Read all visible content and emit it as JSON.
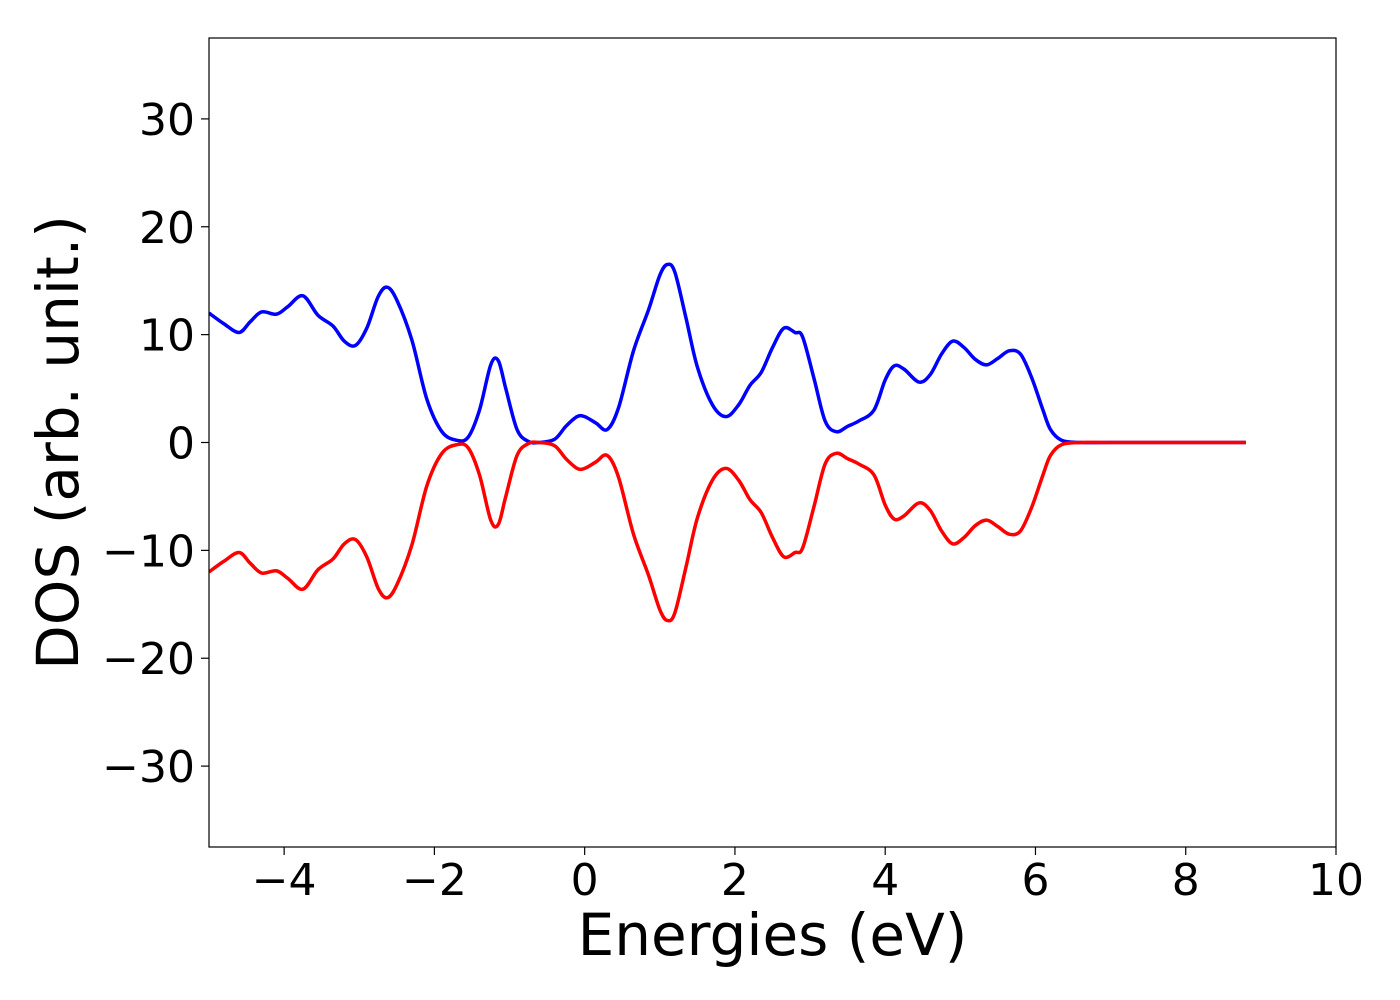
{
  "chart_data": {
    "type": "line",
    "title": "",
    "xlabel": "Energies (eV)",
    "ylabel": "DOS (arb. unit.)",
    "xlim": [
      -5,
      10
    ],
    "ylim": [
      -37.5,
      37.5
    ],
    "xticks": [
      -4,
      -2,
      0,
      2,
      4,
      6,
      8,
      10
    ],
    "yticks": [
      -30,
      -20,
      -10,
      0,
      10,
      20,
      30
    ],
    "xtick_labels": [
      "−4",
      "−2",
      "0",
      "2",
      "4",
      "6",
      "8",
      "10"
    ],
    "ytick_labels": [
      "−30",
      "−20",
      "−10",
      "0",
      "10",
      "20",
      "30"
    ],
    "grid": false,
    "legend": "none",
    "series": [
      {
        "color": "#0000ff",
        "x": [
          -5.0,
          -4.8,
          -4.6,
          -4.45,
          -4.3,
          -4.1,
          -3.95,
          -3.75,
          -3.55,
          -3.35,
          -3.2,
          -3.05,
          -2.9,
          -2.75,
          -2.63,
          -2.5,
          -2.3,
          -2.1,
          -1.9,
          -1.7,
          -1.55,
          -1.4,
          -1.25,
          -1.15,
          -1.05,
          -0.9,
          -0.75,
          -0.6,
          -0.4,
          -0.25,
          -0.1,
          0.0,
          0.15,
          0.3,
          0.45,
          0.65,
          0.85,
          1.0,
          1.1,
          1.2,
          1.35,
          1.5,
          1.7,
          1.88,
          2.05,
          2.2,
          2.35,
          2.5,
          2.65,
          2.8,
          2.9,
          3.05,
          3.2,
          3.35,
          3.5,
          3.65,
          3.85,
          4.0,
          4.12,
          4.25,
          4.45,
          4.6,
          4.75,
          4.9,
          5.05,
          5.2,
          5.35,
          5.5,
          5.65,
          5.8,
          5.95,
          6.1,
          6.2,
          6.35,
          6.6,
          7.0,
          8.0,
          8.8
        ],
        "values": [
          12.0,
          11.0,
          10.2,
          11.2,
          12.1,
          11.9,
          12.6,
          13.6,
          11.8,
          10.8,
          9.4,
          9.0,
          10.6,
          13.5,
          14.4,
          13.2,
          9.5,
          4.0,
          1.0,
          0.2,
          0.5,
          3.0,
          7.2,
          7.6,
          5.0,
          1.2,
          0.1,
          0.0,
          0.3,
          1.5,
          2.4,
          2.4,
          1.8,
          1.2,
          3.2,
          8.5,
          12.3,
          15.5,
          16.5,
          15.8,
          11.5,
          7.0,
          3.5,
          2.4,
          3.5,
          5.3,
          6.5,
          8.8,
          10.6,
          10.2,
          9.8,
          6.0,
          2.0,
          1.0,
          1.5,
          2.0,
          3.0,
          5.8,
          7.1,
          6.8,
          5.6,
          6.3,
          8.2,
          9.4,
          8.8,
          7.7,
          7.2,
          7.8,
          8.5,
          8.2,
          6.0,
          3.0,
          1.2,
          0.2,
          0.0,
          0.0,
          0.0,
          0.0
        ]
      },
      {
        "color": "#ff0000",
        "x": [
          -5.0,
          -4.8,
          -4.6,
          -4.45,
          -4.3,
          -4.1,
          -3.95,
          -3.75,
          -3.55,
          -3.35,
          -3.2,
          -3.05,
          -2.9,
          -2.75,
          -2.63,
          -2.5,
          -2.3,
          -2.1,
          -1.9,
          -1.7,
          -1.55,
          -1.4,
          -1.25,
          -1.15,
          -1.05,
          -0.9,
          -0.75,
          -0.6,
          -0.4,
          -0.25,
          -0.1,
          0.0,
          0.15,
          0.3,
          0.45,
          0.65,
          0.85,
          1.0,
          1.1,
          1.2,
          1.35,
          1.5,
          1.7,
          1.88,
          2.05,
          2.2,
          2.35,
          2.5,
          2.65,
          2.8,
          2.9,
          3.05,
          3.2,
          3.35,
          3.5,
          3.65,
          3.85,
          4.0,
          4.12,
          4.25,
          4.45,
          4.6,
          4.75,
          4.9,
          5.05,
          5.2,
          5.35,
          5.5,
          5.65,
          5.8,
          5.95,
          6.1,
          6.2,
          6.35,
          6.6,
          7.0,
          8.0,
          8.8
        ],
        "values": [
          -12.0,
          -11.0,
          -10.2,
          -11.2,
          -12.1,
          -11.9,
          -12.6,
          -13.6,
          -11.8,
          -10.8,
          -9.4,
          -9.0,
          -10.6,
          -13.5,
          -14.4,
          -13.2,
          -9.5,
          -4.0,
          -1.0,
          -0.2,
          -0.5,
          -3.0,
          -7.2,
          -7.6,
          -5.0,
          -1.2,
          -0.1,
          0.0,
          -0.3,
          -1.5,
          -2.4,
          -2.4,
          -1.8,
          -1.2,
          -3.2,
          -8.5,
          -12.3,
          -15.5,
          -16.5,
          -15.8,
          -11.5,
          -7.0,
          -3.5,
          -2.4,
          -3.5,
          -5.3,
          -6.5,
          -8.8,
          -10.6,
          -10.2,
          -9.8,
          -6.0,
          -2.0,
          -1.0,
          -1.5,
          -2.0,
          -3.0,
          -5.8,
          -7.1,
          -6.8,
          -5.6,
          -6.3,
          -8.2,
          -9.4,
          -8.8,
          -7.7,
          -7.2,
          -7.8,
          -8.5,
          -8.2,
          -6.0,
          -3.0,
          -1.2,
          -0.2,
          0.0,
          0.0,
          0.0,
          0.0
        ]
      }
    ]
  }
}
